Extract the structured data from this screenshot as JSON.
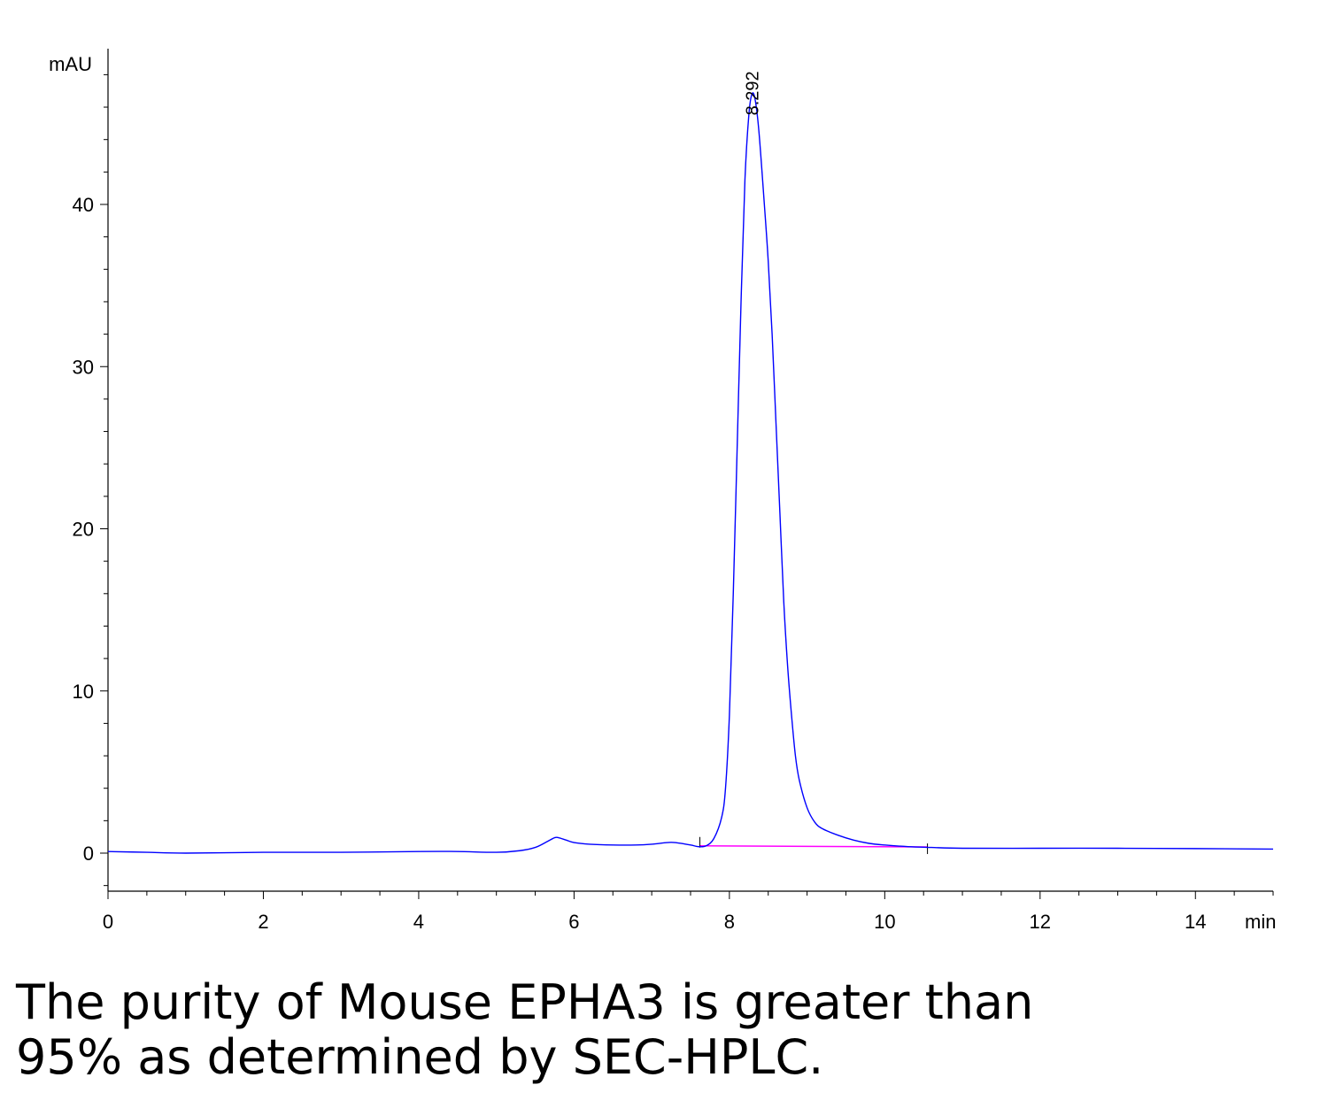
{
  "chart_data": {
    "type": "line",
    "xlabel": "min",
    "ylabel": "mAU",
    "xlim": [
      0,
      15
    ],
    "ylim": [
      -2,
      49
    ],
    "x_ticks": [
      0,
      2,
      4,
      6,
      8,
      10,
      12,
      14
    ],
    "y_ticks": [
      0,
      10,
      20,
      30,
      40
    ],
    "grid": false,
    "series": [
      {
        "color": "#0000ff",
        "x": [
          0,
          0.5,
          1,
          2,
          3,
          4,
          4.5,
          5,
          5.3,
          5.5,
          5.65,
          5.75,
          5.8,
          5.9,
          6.0,
          6.2,
          6.5,
          6.8,
          7.0,
          7.2,
          7.3,
          7.5,
          7.6,
          7.7,
          7.8,
          7.9,
          7.95,
          8.0,
          8.05,
          8.1,
          8.15,
          8.2,
          8.25,
          8.29,
          8.33,
          8.38,
          8.45,
          8.5,
          8.55,
          8.6,
          8.65,
          8.7,
          8.75,
          8.8,
          8.85,
          8.9,
          9.0,
          9.1,
          9.2,
          9.4,
          9.6,
          9.8,
          10.0,
          10.3,
          10.6,
          11.0,
          12.0,
          13.0,
          14.0,
          15.0
        ],
        "y": [
          0.1,
          0.05,
          0.0,
          0.05,
          0.05,
          0.1,
          0.1,
          0.05,
          0.15,
          0.35,
          0.7,
          0.95,
          0.95,
          0.8,
          0.65,
          0.55,
          0.5,
          0.5,
          0.55,
          0.65,
          0.65,
          0.5,
          0.4,
          0.45,
          0.9,
          2.2,
          4.0,
          8.5,
          16.0,
          25.0,
          34.0,
          41.5,
          45.5,
          46.8,
          46.5,
          44.5,
          40.0,
          36.5,
          32.0,
          26.5,
          21.0,
          15.5,
          11.5,
          8.5,
          6.0,
          4.5,
          2.8,
          1.9,
          1.5,
          1.1,
          0.8,
          0.6,
          0.5,
          0.4,
          0.35,
          0.3,
          0.3,
          0.3,
          0.28,
          0.25
        ]
      }
    ],
    "baseline": {
      "color": "#ff00ff",
      "x": [
        7.62,
        10.55
      ],
      "y": [
        0.45,
        0.38
      ]
    },
    "annotations": [
      {
        "text": "8.292",
        "x": 8.292,
        "y": 46.8
      }
    ]
  },
  "caption": {
    "line1": "The purity of Mouse EPHA3 is greater than",
    "line2": "95% as determined by SEC-HPLC."
  }
}
